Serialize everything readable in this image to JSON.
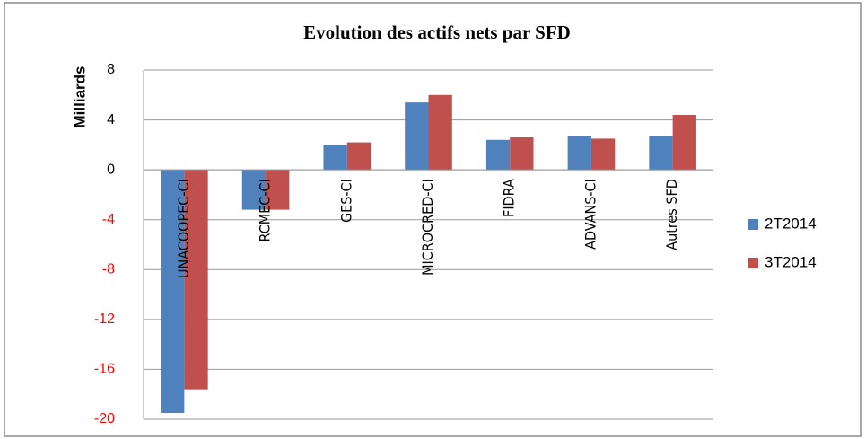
{
  "chart_data": {
    "type": "bar",
    "title": "Evolution des actifs nets par SFD",
    "y_label": "Milliards",
    "categories": [
      "UNACOOPEC-CI",
      "RCMEC-CI",
      "GES-CI",
      "MICROCRED-CI",
      "FIDRA",
      "ADVANS-CI",
      "Autres SFD"
    ],
    "series": [
      {
        "name": "2T2014",
        "color": "#4f81bd",
        "values": [
          -19.5,
          -3.2,
          2.0,
          5.4,
          2.4,
          2.7,
          2.7
        ]
      },
      {
        "name": "3T2014",
        "color": "#c0504d",
        "values": [
          -17.6,
          -3.2,
          2.2,
          6.0,
          2.6,
          2.5,
          4.4
        ]
      }
    ],
    "ylim": [
      -20,
      8
    ],
    "yticks": [
      -20,
      -16,
      -12,
      -8,
      -4,
      0,
      4,
      8
    ],
    "grid": true,
    "negative_tick_color": "#ff0000",
    "legend": "right"
  }
}
